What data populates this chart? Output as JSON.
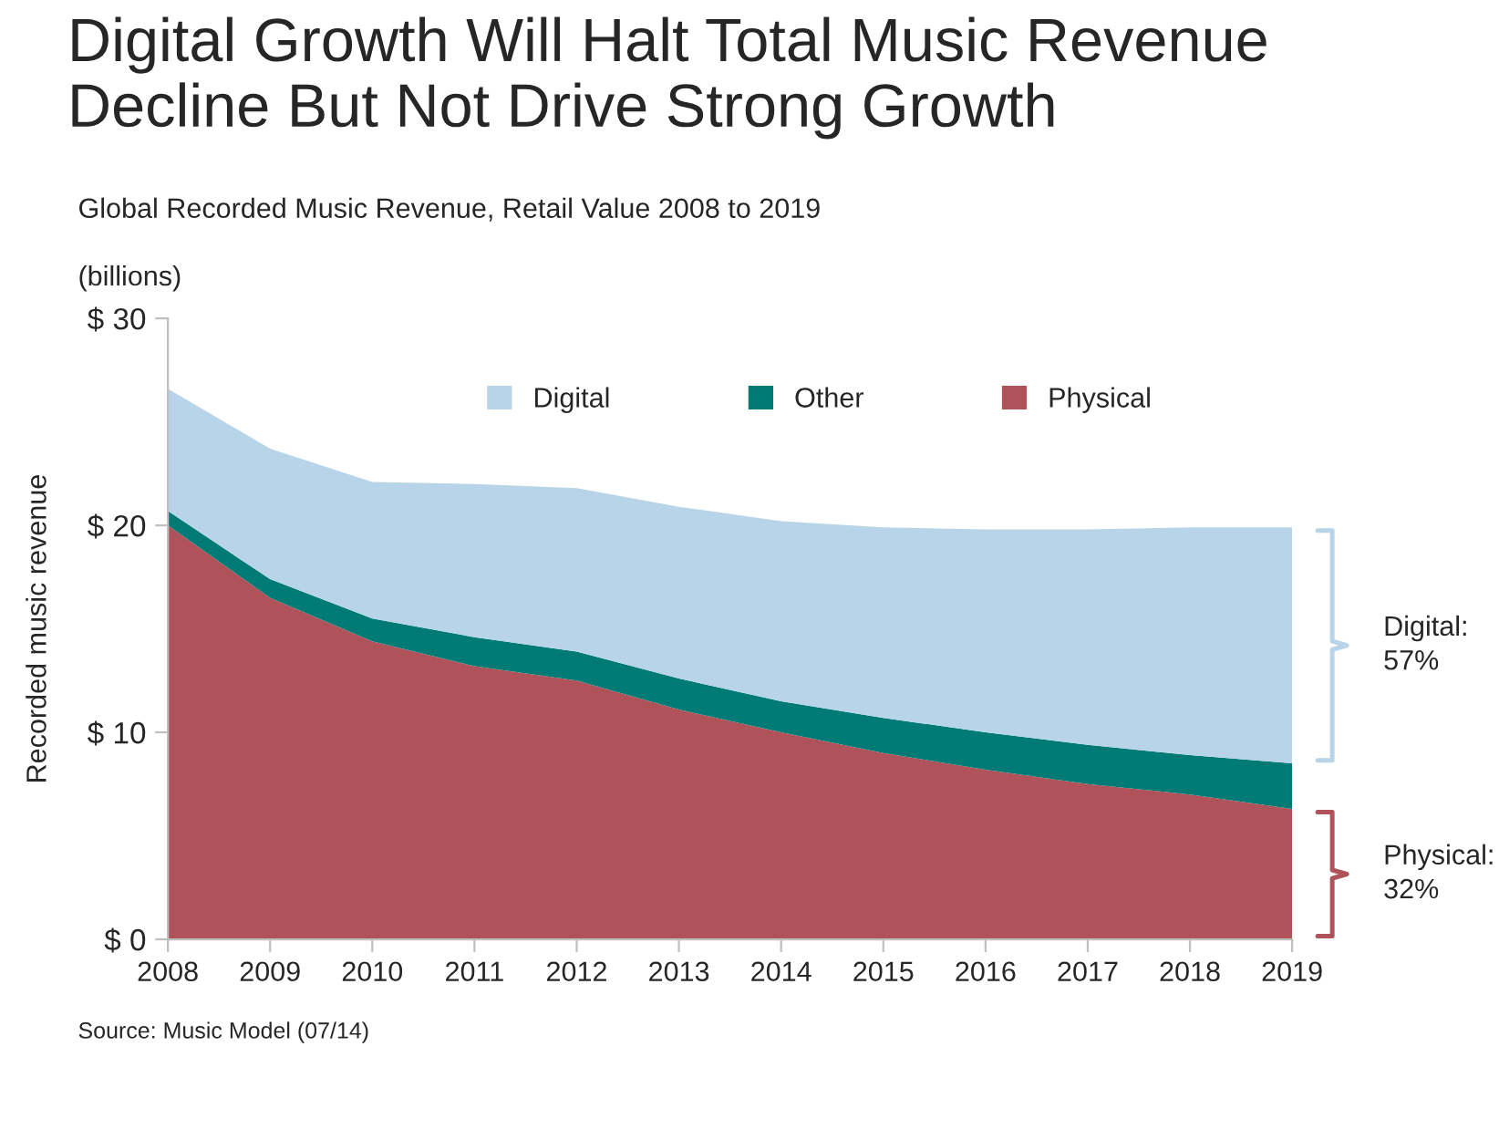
{
  "chart_data": {
    "type": "area",
    "stacked": true,
    "title": "Digital Growth Will Halt Total Music Revenue\nDecline But Not Drive Strong Growth",
    "subtitle": "Global Recorded Music Revenue, Retail Value 2008 to 2019",
    "ylabel": "Recorded music revenue",
    "x": [
      2008,
      2009,
      2010,
      2011,
      2012,
      2013,
      2014,
      2015,
      2016,
      2017,
      2018,
      2019
    ],
    "series": [
      {
        "name": "Physical",
        "color": "#b0525a",
        "values": [
          20.0,
          16.5,
          14.4,
          13.2,
          12.5,
          11.1,
          10.0,
          9.0,
          8.2,
          7.5,
          7.0,
          6.3
        ]
      },
      {
        "name": "Other",
        "color": "#007a74",
        "values": [
          0.7,
          0.9,
          1.1,
          1.4,
          1.4,
          1.5,
          1.5,
          1.7,
          1.8,
          1.9,
          1.9,
          2.2
        ]
      },
      {
        "name": "Digital",
        "color": "#b8d4e8",
        "values": [
          5.9,
          6.3,
          6.6,
          7.4,
          7.9,
          8.3,
          8.7,
          9.2,
          9.8,
          10.4,
          11.0,
          11.4
        ]
      }
    ],
    "xlim": [
      2008,
      2019
    ],
    "xticks": [
      2008,
      2009,
      2010,
      2011,
      2012,
      2013,
      2014,
      2015,
      2016,
      2017,
      2018,
      2019
    ],
    "ylim": [
      0,
      30
    ],
    "yticks": [
      {
        "value": 0,
        "label": "$ 0"
      },
      {
        "value": 10,
        "label": "$ 10"
      },
      {
        "value": 20,
        "label": "$ 20"
      },
      {
        "value": 30,
        "label": "$ 30"
      }
    ],
    "grid": false,
    "legend": "top",
    "annotations": [
      "(billions)",
      "Digital:\n57%",
      "Physical:\n32%",
      "Source: Music Model (07/14)"
    ]
  }
}
